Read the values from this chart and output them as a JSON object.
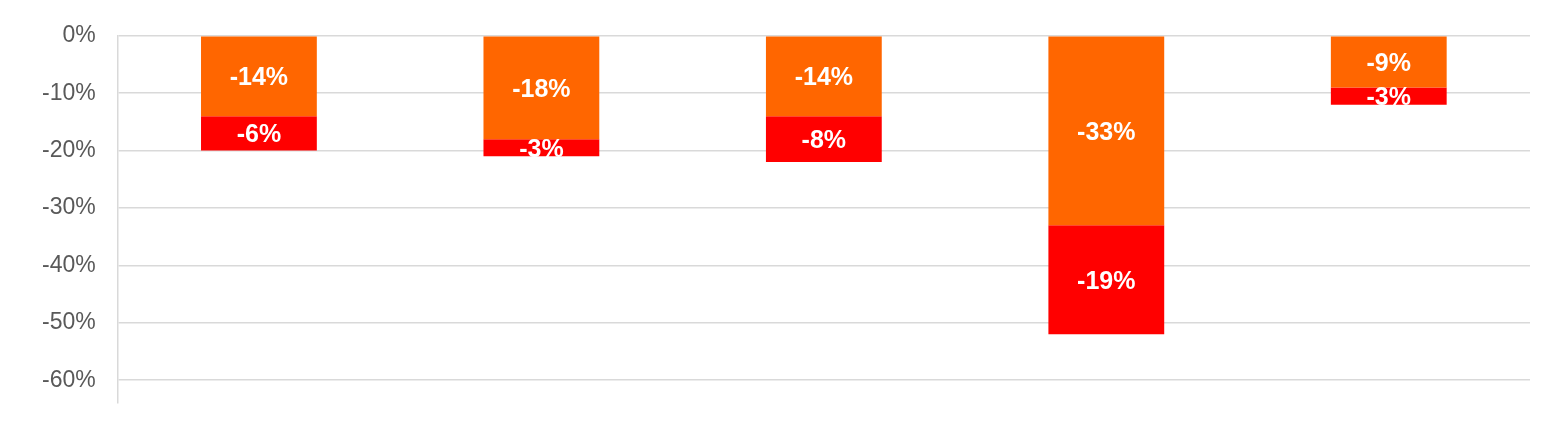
{
  "chart_data": {
    "type": "bar",
    "stacked": true,
    "categories": [
      null,
      null,
      null,
      null,
      null
    ],
    "series": [
      {
        "color": "#ff6600",
        "values": [
          -14,
          -18,
          -14,
          -33,
          -9
        ],
        "value_labels": [
          "-14%",
          "-18%",
          "-14%",
          "-33%",
          "-9%"
        ]
      },
      {
        "color": "#ff0000",
        "values": [
          -6,
          -3,
          -8,
          -19,
          -3
        ],
        "value_labels": [
          "-6%",
          "-3%",
          "-8%",
          "-19%",
          "-3%"
        ]
      }
    ],
    "ylim": [
      -64,
      0
    ],
    "yticks": [
      {
        "value": 0,
        "label": "0%"
      },
      {
        "value": -10,
        "label": "-10%"
      },
      {
        "value": -20,
        "label": "-20%"
      },
      {
        "value": -30,
        "label": "-30%"
      },
      {
        "value": -40,
        "label": "-40%"
      },
      {
        "value": -50,
        "label": "-50%"
      },
      {
        "value": -60,
        "label": "-60%"
      }
    ],
    "grid": "y",
    "legend": false
  }
}
